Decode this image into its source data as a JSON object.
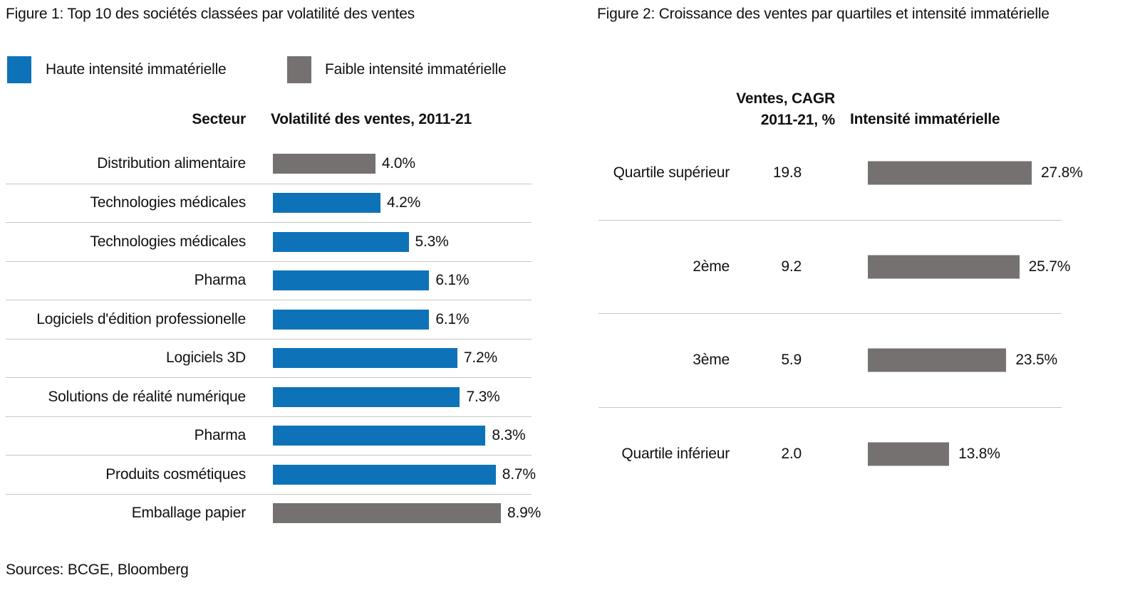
{
  "sources": "Sources: BCGE, Bloomberg",
  "colors": {
    "haute": "#0E72B9",
    "faible": "#767171",
    "separator": "#C6C6C6",
    "text": "#111111"
  },
  "chart_data": [
    {
      "type": "bar",
      "orientation": "horizontal",
      "title": "Figure 1: Top 10 des sociétés classées par volatilité des ventes",
      "columns": {
        "sector": "Secteur",
        "value": "Volatilité des ventes, 2011-21"
      },
      "legend": [
        {
          "name": "Haute intensité immatérielle",
          "key": "haute"
        },
        {
          "name": "Faible intensité immatérielle",
          "key": "faible"
        }
      ],
      "legend_position": "top-left",
      "grid": "row-separators",
      "categories": [
        "Distribution alimentaire",
        "Technologies médicales",
        "Technologies médicales",
        "Pharma",
        "Logiciels d'édition professionelle",
        "Logiciels 3D",
        "Solutions de réalité numérique",
        "Pharma",
        "Produits cosmétiques",
        "Emballage papier"
      ],
      "values": [
        4.0,
        4.2,
        5.3,
        6.1,
        6.1,
        7.2,
        7.3,
        8.3,
        8.7,
        8.9
      ],
      "value_labels": [
        "4.0%",
        "4.2%",
        "5.3%",
        "6.1%",
        "6.1%",
        "7.2%",
        "7.3%",
        "8.3%",
        "8.7%",
        "8.9%"
      ],
      "series_key": [
        "faible",
        "haute",
        "haute",
        "haute",
        "haute",
        "haute",
        "haute",
        "haute",
        "haute",
        "faible"
      ],
      "xlim": [
        0,
        8.9
      ]
    },
    {
      "type": "bar",
      "orientation": "horizontal",
      "title": "Figure 2: Croissance des ventes par quartiles et intensité immatérielle",
      "grid": "row-separators",
      "categories": [
        "Quartile supérieur",
        "2ème",
        "3ème",
        "Quartile inférieur"
      ],
      "series": [
        {
          "name": "Ventes, CAGR 2011-21, %",
          "header_lines": [
            "Ventes, CAGR",
            "2011-21, %"
          ],
          "display": "text",
          "values": [
            19.8,
            9.2,
            5.9,
            2.0
          ],
          "value_labels": [
            "19.8",
            "9.2",
            "5.9",
            "2.0"
          ]
        },
        {
          "name": "Intensité immatérielle",
          "display": "bar",
          "color_key": "faible",
          "values": [
            27.8,
            25.7,
            23.5,
            13.8
          ],
          "value_labels": [
            "27.8%",
            "25.7%",
            "23.5%",
            "13.8%"
          ]
        }
      ],
      "xlim": [
        0,
        27.8
      ]
    }
  ]
}
